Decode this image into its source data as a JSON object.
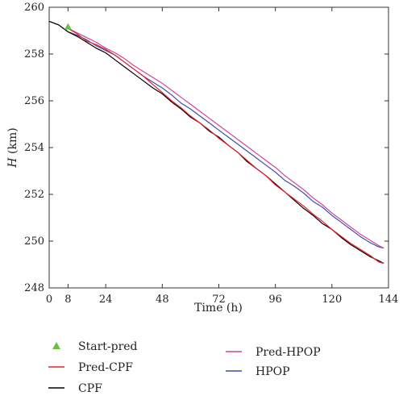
{
  "chart_data": {
    "type": "line",
    "xlabel": "Time (h)",
    "ylabel_var": "H",
    "ylabel_unit": " (km)",
    "xlim": [
      0,
      144
    ],
    "ylim": [
      248,
      260
    ],
    "xticks": [
      0,
      8,
      24,
      48,
      72,
      96,
      120,
      144
    ],
    "yticks": [
      248,
      250,
      252,
      254,
      256,
      258,
      260
    ],
    "grid": false,
    "legend_position": "bottom",
    "legend": [
      {
        "label": "Start-pred",
        "color": "#6fbe44",
        "marker": "triangle"
      },
      {
        "label": "Pred-CPF",
        "color": "#e8202a",
        "marker": "line"
      },
      {
        "label": "CPF",
        "color": "#000000",
        "marker": "line"
      },
      {
        "label": "Pred-HPOP",
        "color": "#d0449b",
        "marker": "line"
      },
      {
        "label": "HPOP",
        "color": "#3b4fb0",
        "marker": "line"
      }
    ],
    "start_pred": {
      "x": 8,
      "y": 259.15
    },
    "series": [
      {
        "name": "Pred-CPF",
        "color": "#e8202a",
        "x": [
          8,
          12,
          16,
          20,
          24,
          28,
          32,
          36,
          40,
          44,
          48,
          52,
          56,
          60,
          64,
          68,
          72,
          76,
          80,
          84,
          88,
          92,
          96,
          100,
          104,
          108,
          112,
          116,
          120,
          124,
          128,
          132,
          136,
          140,
          142
        ],
        "y": [
          259.1,
          258.85,
          258.55,
          258.4,
          258.2,
          257.95,
          257.65,
          257.35,
          257.05,
          256.7,
          256.35,
          256.0,
          255.7,
          255.35,
          255.05,
          254.75,
          254.4,
          254.1,
          253.8,
          253.45,
          253.1,
          252.8,
          252.4,
          252.1,
          251.8,
          251.5,
          251.15,
          250.85,
          250.5,
          250.2,
          249.9,
          249.65,
          249.4,
          249.1,
          249.05
        ]
      },
      {
        "name": "CPF",
        "color": "#000000",
        "x": [
          0,
          4,
          8,
          12,
          16,
          20,
          24,
          28,
          32,
          36,
          40,
          44,
          48,
          52,
          56,
          60,
          64,
          68,
          72,
          76,
          80,
          84,
          88,
          92,
          96,
          100,
          104,
          108,
          112,
          116,
          120,
          124,
          128,
          132,
          136,
          140,
          142
        ],
        "y": [
          259.4,
          259.25,
          258.95,
          258.75,
          258.5,
          258.25,
          258.05,
          257.75,
          257.45,
          257.15,
          256.85,
          256.55,
          256.3,
          255.95,
          255.65,
          255.3,
          255.05,
          254.7,
          254.45,
          254.1,
          253.8,
          253.4,
          253.1,
          252.8,
          252.45,
          252.1,
          251.75,
          251.4,
          251.1,
          250.75,
          250.5,
          250.15,
          249.85,
          249.6,
          249.35,
          249.15,
          249.05
        ]
      },
      {
        "name": "Pred-HPOP",
        "color": "#d0449b",
        "x": [
          8,
          12,
          16,
          20,
          24,
          28,
          32,
          36,
          40,
          44,
          48,
          52,
          56,
          60,
          64,
          68,
          72,
          76,
          80,
          84,
          88,
          92,
          96,
          100,
          104,
          108,
          112,
          116,
          120,
          124,
          128,
          132,
          136,
          140,
          142
        ],
        "y": [
          259.1,
          258.9,
          258.7,
          258.5,
          258.25,
          258.05,
          257.8,
          257.5,
          257.25,
          257.0,
          256.75,
          256.45,
          256.15,
          255.85,
          255.55,
          255.25,
          254.95,
          254.65,
          254.35,
          254.05,
          253.75,
          253.45,
          253.15,
          252.8,
          252.5,
          252.2,
          251.85,
          251.55,
          251.2,
          250.9,
          250.6,
          250.3,
          250.05,
          249.8,
          249.7
        ]
      },
      {
        "name": "HPOP",
        "color": "#3b4fb0",
        "x": [
          0,
          4,
          8,
          12,
          16,
          20,
          24,
          28,
          32,
          36,
          40,
          44,
          48,
          52,
          56,
          60,
          64,
          68,
          72,
          76,
          80,
          84,
          88,
          92,
          96,
          100,
          104,
          108,
          112,
          116,
          120,
          124,
          128,
          132,
          136,
          140,
          142
        ],
        "y": [
          259.4,
          259.25,
          258.95,
          258.8,
          258.6,
          258.35,
          258.15,
          257.95,
          257.65,
          257.35,
          257.05,
          256.8,
          256.55,
          256.25,
          255.9,
          255.65,
          255.35,
          255.05,
          254.75,
          254.45,
          254.15,
          253.85,
          253.55,
          253.25,
          252.95,
          252.6,
          252.35,
          252.05,
          251.7,
          251.45,
          251.1,
          250.8,
          250.5,
          250.2,
          249.95,
          249.75,
          249.7
        ]
      }
    ]
  }
}
